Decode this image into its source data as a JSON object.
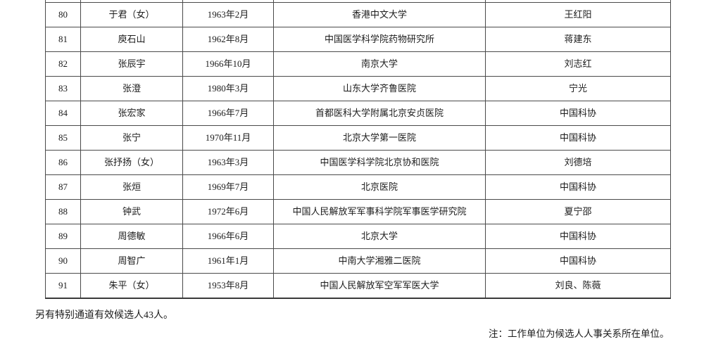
{
  "colors": {
    "page_background": "#ffffff",
    "text": "#1c1c1c",
    "table_border": "#4a4a4a"
  },
  "table": {
    "rows": [
      {
        "no": "80",
        "name": "于君（女）",
        "birth": "1963年2月",
        "unit": "香港中文大学",
        "recommender": "王红阳"
      },
      {
        "no": "81",
        "name": "庾石山",
        "birth": "1962年8月",
        "unit": "中国医学科学院药物研究所",
        "recommender": "蒋建东"
      },
      {
        "no": "82",
        "name": "张辰宇",
        "birth": "1966年10月",
        "unit": "南京大学",
        "recommender": "刘志红"
      },
      {
        "no": "83",
        "name": "张澄",
        "birth": "1980年3月",
        "unit": "山东大学齐鲁医院",
        "recommender": "宁光"
      },
      {
        "no": "84",
        "name": "张宏家",
        "birth": "1966年7月",
        "unit": "首都医科大学附属北京安贞医院",
        "recommender": "中国科协"
      },
      {
        "no": "85",
        "name": "张宁",
        "birth": "1970年11月",
        "unit": "北京大学第一医院",
        "recommender": "中国科协"
      },
      {
        "no": "86",
        "name": "张抒扬（女）",
        "birth": "1963年3月",
        "unit": "中国医学科学院北京协和医院",
        "recommender": "刘德培"
      },
      {
        "no": "87",
        "name": "张烜",
        "birth": "1969年7月",
        "unit": "北京医院",
        "recommender": "中国科协"
      },
      {
        "no": "88",
        "name": "钟武",
        "birth": "1972年6月",
        "unit": "中国人民解放军军事科学院军事医学研究院",
        "recommender": "夏宁邵"
      },
      {
        "no": "89",
        "name": "周德敏",
        "birth": "1966年6月",
        "unit": "北京大学",
        "recommender": "中国科协"
      },
      {
        "no": "90",
        "name": "周智广",
        "birth": "1961年1月",
        "unit": "中南大学湘雅二医院",
        "recommender": "中国科协"
      },
      {
        "no": "91",
        "name": "朱平（女）",
        "birth": "1953年8月",
        "unit": "中国人民解放军空军军医大学",
        "recommender": "刘良、陈薇"
      }
    ]
  },
  "footer": {
    "special_channel_note": "另有特别通道有效候选人43人。",
    "work_unit_note": "注：工作单位为候选人人事关系所在单位。"
  }
}
